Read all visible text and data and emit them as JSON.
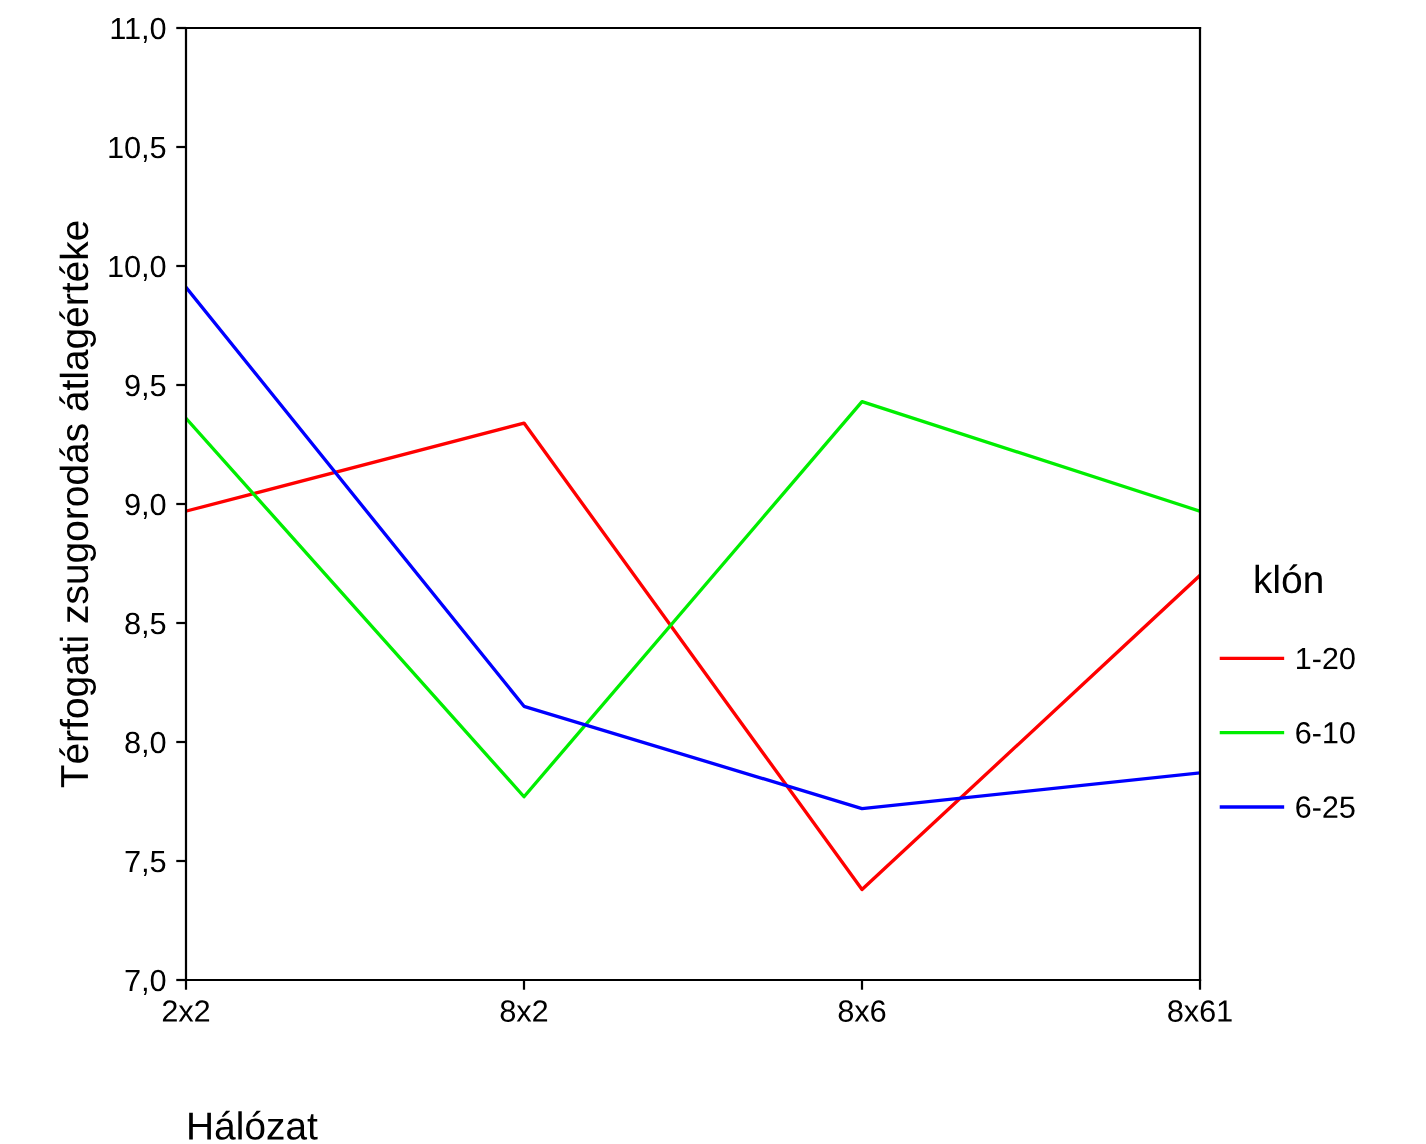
{
  "chart_data": {
    "type": "line",
    "xlabel": "Hálózat",
    "ylabel": "Térfogati zsugorodás átlagértéke",
    "legend_title": "klón",
    "legend": "right",
    "grid": false,
    "marker": "none",
    "line_style": "solid",
    "categories": [
      "2x2",
      "8x2",
      "8x6",
      "8x61"
    ],
    "ylim": [
      7.0,
      11.0
    ],
    "yticks": [
      {
        "value": 7.0,
        "label": "7,0"
      },
      {
        "value": 7.5,
        "label": "7,5"
      },
      {
        "value": 8.0,
        "label": "8,0"
      },
      {
        "value": 8.5,
        "label": "8,5"
      },
      {
        "value": 9.0,
        "label": "9,0"
      },
      {
        "value": 9.5,
        "label": "9,5"
      },
      {
        "value": 10.0,
        "label": "10,0"
      },
      {
        "value": 10.5,
        "label": "10,5"
      },
      {
        "value": 11.0,
        "label": "11,0"
      }
    ],
    "series": [
      {
        "name": "1-20",
        "color": "#ff0000",
        "values": [
          8.97,
          9.34,
          7.38,
          8.7
        ]
      },
      {
        "name": "6-10",
        "color": "#00ee00",
        "values": [
          9.36,
          7.77,
          9.43,
          8.97
        ]
      },
      {
        "name": "6-25",
        "color": "#0000ff",
        "values": [
          9.91,
          8.15,
          7.72,
          7.87
        ]
      }
    ]
  }
}
